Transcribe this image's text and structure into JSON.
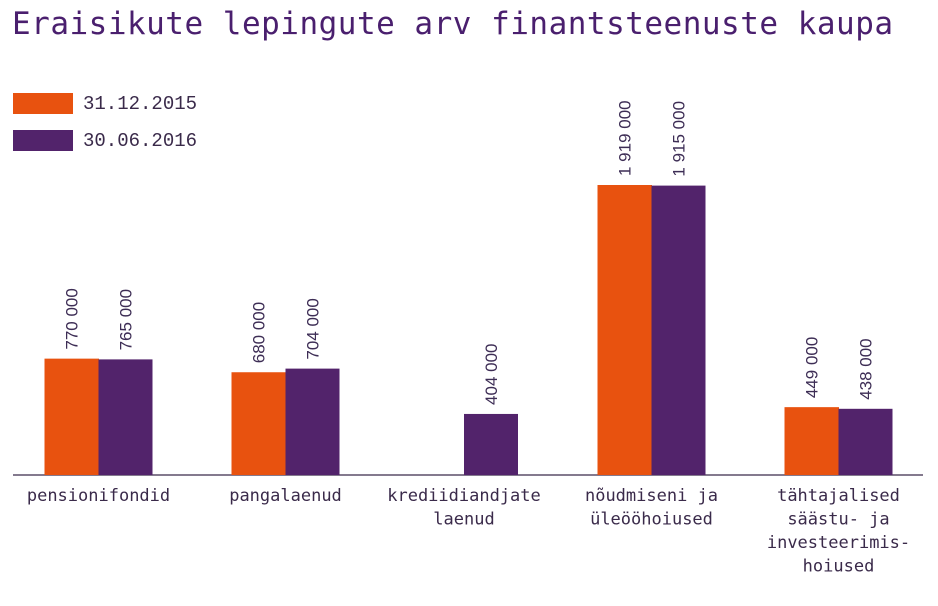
{
  "chart_data": {
    "type": "bar",
    "title": "Eraisikute lepingute arv finantsteenuste kaupa",
    "xlabel": "",
    "ylabel": "",
    "ylim": [
      0,
      2000000
    ],
    "grid": false,
    "legend_position": "top-left",
    "categories": [
      [
        "pensionifondid"
      ],
      [
        "pangalaenud"
      ],
      [
        "krediidiandjate",
        "laenud"
      ],
      [
        "nõudmiseni ja",
        "üleööhoiused"
      ],
      [
        "tähtajalised",
        "säästu- ja",
        "investeerimis-",
        "hoiused"
      ]
    ],
    "series": [
      {
        "name": "31.12.2015",
        "color": "#e8520f",
        "values": [
          770000,
          680000,
          null,
          1919000,
          449000
        ],
        "labels": [
          "770 000",
          "680 000",
          "",
          "1 919 000",
          "449 000"
        ]
      },
      {
        "name": "30.06.2016",
        "color": "#52236b",
        "values": [
          765000,
          704000,
          404000,
          1915000,
          438000
        ],
        "labels": [
          "765 000",
          "704 000",
          "404 000",
          "1 915 000",
          "438 000"
        ]
      }
    ]
  }
}
